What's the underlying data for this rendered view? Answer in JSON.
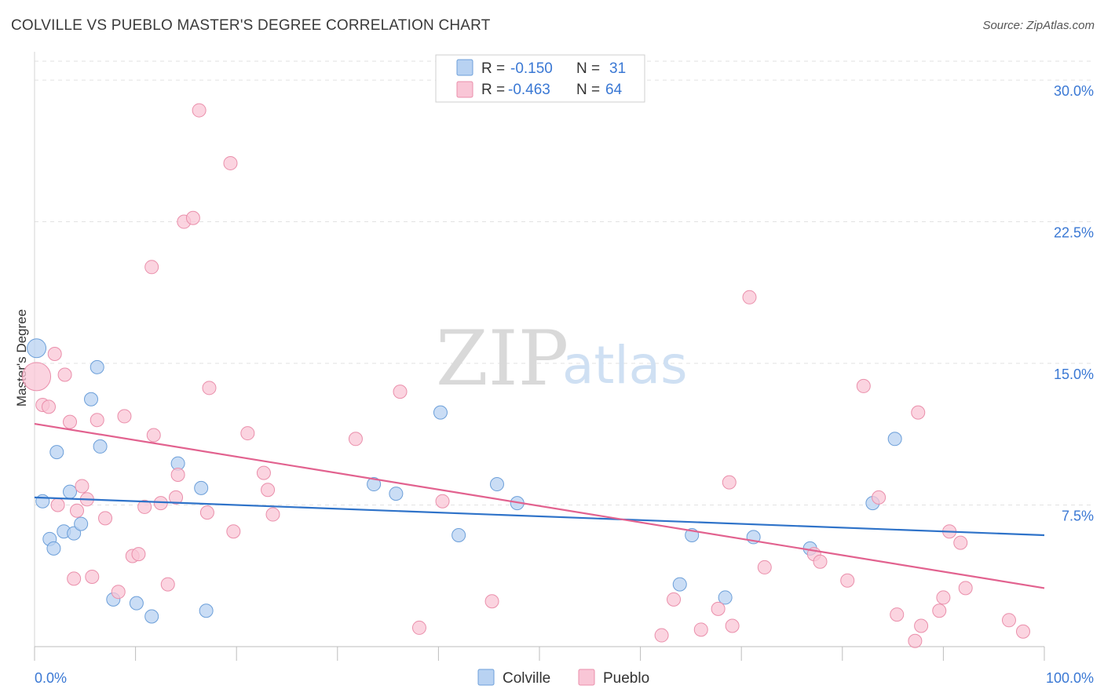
{
  "header": {
    "title": "COLVILLE VS PUEBLO MASTER'S DEGREE CORRELATION CHART",
    "source": "Source: ZipAtlas.com"
  },
  "watermark": {
    "zip": "ZIP",
    "atlas": "atlas"
  },
  "colors": {
    "colville_fill": "#b8d2f2",
    "colville_stroke": "#6c9fd9",
    "colville_line": "#2f73c9",
    "pueblo_fill": "#f9c6d6",
    "pueblo_stroke": "#ea8fab",
    "pueblo_line": "#e2628f",
    "tick_label": "#3a78d4",
    "grid": "#e2e2e2"
  },
  "legend": {
    "rows": [
      {
        "r_label": "R =",
        "r_value": "-0.150",
        "n_label": "N =",
        "n_value": "31"
      },
      {
        "r_label": "R =",
        "r_value": "-0.463",
        "n_label": "N =",
        "n_value": "64"
      }
    ]
  },
  "chart_data": {
    "type": "scatter",
    "xlabel": "",
    "ylabel": "Master's Degree",
    "xlim": [
      0,
      100
    ],
    "ylim": [
      0,
      31
    ],
    "y_ticks": [
      7.5,
      15.0,
      22.5,
      30.0
    ],
    "y_tick_labels": [
      "7.5%",
      "15.0%",
      "22.5%",
      "30.0%"
    ],
    "x_tick_labels": [
      "0.0%",
      "100.0%"
    ],
    "grid": true,
    "series": [
      {
        "name": "Colville",
        "trend": {
          "x": [
            0,
            100
          ],
          "y": [
            7.9,
            5.9
          ]
        },
        "points": [
          {
            "x": 0.2,
            "y": 15.8,
            "s": 12
          },
          {
            "x": 0.8,
            "y": 7.7
          },
          {
            "x": 1.5,
            "y": 5.7
          },
          {
            "x": 1.9,
            "y": 5.2
          },
          {
            "x": 2.2,
            "y": 10.3
          },
          {
            "x": 2.9,
            "y": 6.1
          },
          {
            "x": 3.5,
            "y": 8.2
          },
          {
            "x": 3.9,
            "y": 6.0
          },
          {
            "x": 4.6,
            "y": 6.5
          },
          {
            "x": 5.6,
            "y": 13.1
          },
          {
            "x": 6.2,
            "y": 14.8
          },
          {
            "x": 6.5,
            "y": 10.6
          },
          {
            "x": 7.8,
            "y": 2.5
          },
          {
            "x": 10.1,
            "y": 2.3
          },
          {
            "x": 11.6,
            "y": 1.6
          },
          {
            "x": 14.2,
            "y": 9.7
          },
          {
            "x": 16.5,
            "y": 8.4
          },
          {
            "x": 17.0,
            "y": 1.9
          },
          {
            "x": 33.6,
            "y": 8.6
          },
          {
            "x": 35.8,
            "y": 8.1
          },
          {
            "x": 40.2,
            "y": 12.4
          },
          {
            "x": 42.0,
            "y": 5.9
          },
          {
            "x": 45.8,
            "y": 8.6
          },
          {
            "x": 47.8,
            "y": 7.6
          },
          {
            "x": 63.9,
            "y": 3.3
          },
          {
            "x": 65.1,
            "y": 5.9
          },
          {
            "x": 68.4,
            "y": 2.6
          },
          {
            "x": 71.2,
            "y": 5.8
          },
          {
            "x": 76.8,
            "y": 5.2
          },
          {
            "x": 83.0,
            "y": 7.6
          },
          {
            "x": 85.2,
            "y": 11.0
          }
        ]
      },
      {
        "name": "Pueblo",
        "trend": {
          "x": [
            0,
            100
          ],
          "y": [
            11.8,
            3.1
          ]
        },
        "points": [
          {
            "x": 0.2,
            "y": 14.3,
            "s": 18
          },
          {
            "x": 0.8,
            "y": 12.8
          },
          {
            "x": 1.4,
            "y": 12.7
          },
          {
            "x": 2.0,
            "y": 15.5
          },
          {
            "x": 2.3,
            "y": 7.5
          },
          {
            "x": 3.0,
            "y": 14.4
          },
          {
            "x": 3.5,
            "y": 11.9
          },
          {
            "x": 3.9,
            "y": 3.6
          },
          {
            "x": 4.2,
            "y": 7.2
          },
          {
            "x": 4.7,
            "y": 8.5
          },
          {
            "x": 5.2,
            "y": 7.8
          },
          {
            "x": 5.7,
            "y": 3.7
          },
          {
            "x": 6.2,
            "y": 12.0
          },
          {
            "x": 7.0,
            "y": 6.8
          },
          {
            "x": 8.3,
            "y": 2.9
          },
          {
            "x": 8.9,
            "y": 12.2
          },
          {
            "x": 9.7,
            "y": 4.8
          },
          {
            "x": 10.3,
            "y": 4.9
          },
          {
            "x": 10.9,
            "y": 7.4
          },
          {
            "x": 11.6,
            "y": 20.1
          },
          {
            "x": 11.8,
            "y": 11.2
          },
          {
            "x": 12.5,
            "y": 7.6
          },
          {
            "x": 13.2,
            "y": 3.3
          },
          {
            "x": 14.0,
            "y": 7.9
          },
          {
            "x": 14.2,
            "y": 9.1
          },
          {
            "x": 14.8,
            "y": 22.5
          },
          {
            "x": 15.7,
            "y": 22.7
          },
          {
            "x": 16.3,
            "y": 28.4
          },
          {
            "x": 17.1,
            "y": 7.1
          },
          {
            "x": 17.3,
            "y": 13.7
          },
          {
            "x": 19.4,
            "y": 25.6
          },
          {
            "x": 19.7,
            "y": 6.1
          },
          {
            "x": 21.1,
            "y": 11.3
          },
          {
            "x": 22.7,
            "y": 9.2
          },
          {
            "x": 23.1,
            "y": 8.3
          },
          {
            "x": 23.6,
            "y": 7.0
          },
          {
            "x": 31.8,
            "y": 11.0
          },
          {
            "x": 36.2,
            "y": 13.5
          },
          {
            "x": 38.1,
            "y": 1.0
          },
          {
            "x": 40.4,
            "y": 7.7
          },
          {
            "x": 45.3,
            "y": 2.4
          },
          {
            "x": 62.1,
            "y": 0.6
          },
          {
            "x": 63.3,
            "y": 2.5
          },
          {
            "x": 66.0,
            "y": 0.9
          },
          {
            "x": 67.7,
            "y": 2.0
          },
          {
            "x": 68.8,
            "y": 8.7
          },
          {
            "x": 69.1,
            "y": 1.1
          },
          {
            "x": 70.8,
            "y": 18.5
          },
          {
            "x": 72.3,
            "y": 4.2
          },
          {
            "x": 77.2,
            "y": 4.9
          },
          {
            "x": 77.8,
            "y": 4.5
          },
          {
            "x": 80.5,
            "y": 3.5
          },
          {
            "x": 82.1,
            "y": 13.8
          },
          {
            "x": 83.6,
            "y": 7.9
          },
          {
            "x": 85.4,
            "y": 1.7
          },
          {
            "x": 87.2,
            "y": 0.3
          },
          {
            "x": 87.5,
            "y": 12.4
          },
          {
            "x": 87.8,
            "y": 1.1
          },
          {
            "x": 89.6,
            "y": 1.9
          },
          {
            "x": 90.0,
            "y": 2.6
          },
          {
            "x": 90.6,
            "y": 6.1
          },
          {
            "x": 91.7,
            "y": 5.5
          },
          {
            "x": 92.2,
            "y": 3.1
          },
          {
            "x": 96.5,
            "y": 1.4
          },
          {
            "x": 97.9,
            "y": 0.8
          }
        ]
      }
    ]
  }
}
